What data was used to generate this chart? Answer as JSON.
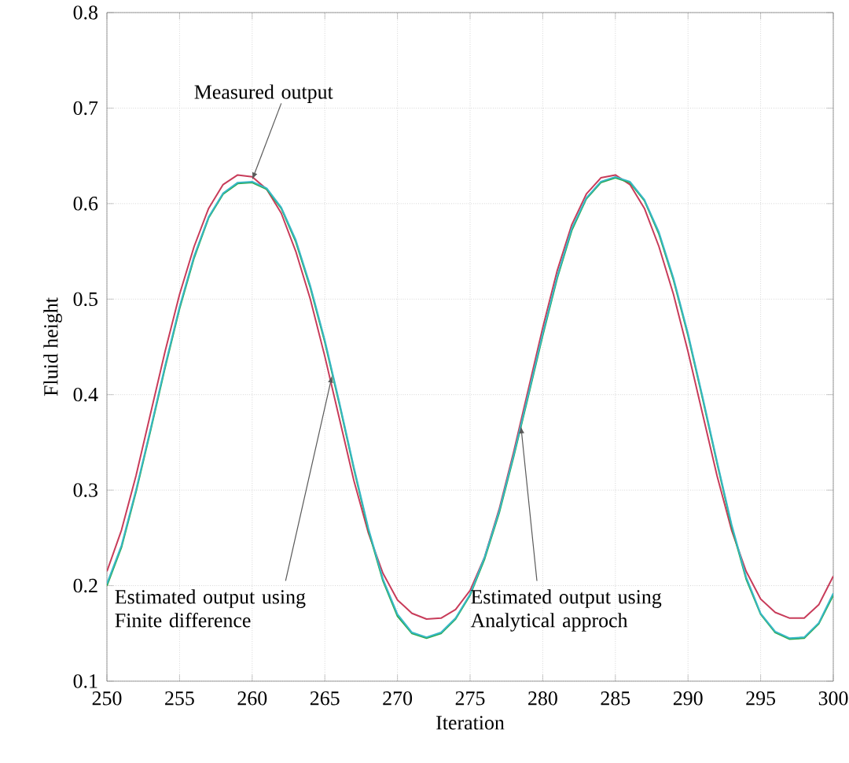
{
  "chart_data": {
    "type": "line",
    "xlabel": "Iteration",
    "ylabel": "Fluid height",
    "xlim": [
      250,
      300
    ],
    "ylim": [
      0.1,
      0.8
    ],
    "xticks": [
      250,
      255,
      260,
      265,
      270,
      275,
      280,
      285,
      290,
      295,
      300
    ],
    "yticks": [
      0.1,
      0.2,
      0.3,
      0.4,
      0.5,
      0.6,
      0.7,
      0.8
    ],
    "grid": true,
    "marker": "none",
    "line_style": "solid",
    "x": [
      250,
      251,
      252,
      253,
      254,
      255,
      256,
      257,
      258,
      259,
      260,
      261,
      262,
      263,
      264,
      265,
      266,
      267,
      268,
      269,
      270,
      271,
      272,
      273,
      274,
      275,
      276,
      277,
      278,
      279,
      280,
      281,
      282,
      283,
      284,
      285,
      286,
      287,
      288,
      289,
      290,
      291,
      292,
      293,
      294,
      295,
      296,
      297,
      298,
      299,
      300
    ],
    "series": [
      {
        "color": "#c83c5a",
        "values": [
          0.215,
          0.258,
          0.315,
          0.38,
          0.445,
          0.505,
          0.555,
          0.595,
          0.62,
          0.63,
          0.628,
          0.615,
          0.59,
          0.55,
          0.5,
          0.44,
          0.375,
          0.31,
          0.255,
          0.213,
          0.185,
          0.171,
          0.165,
          0.166,
          0.175,
          0.195,
          0.23,
          0.28,
          0.34,
          0.405,
          0.47,
          0.53,
          0.578,
          0.61,
          0.627,
          0.63,
          0.62,
          0.595,
          0.555,
          0.505,
          0.445,
          0.38,
          0.315,
          0.258,
          0.215,
          0.186,
          0.172,
          0.166,
          0.166,
          0.18,
          0.21
        ]
      },
      {
        "color": "#2aa84a",
        "values": [
          0.2,
          0.24,
          0.298,
          0.362,
          0.428,
          0.49,
          0.543,
          0.585,
          0.61,
          0.621,
          0.622,
          0.615,
          0.595,
          0.56,
          0.512,
          0.455,
          0.39,
          0.322,
          0.258,
          0.205,
          0.168,
          0.15,
          0.145,
          0.15,
          0.165,
          0.19,
          0.228,
          0.276,
          0.335,
          0.398,
          0.462,
          0.522,
          0.572,
          0.605,
          0.622,
          0.627,
          0.622,
          0.603,
          0.568,
          0.52,
          0.462,
          0.396,
          0.328,
          0.262,
          0.207,
          0.17,
          0.151,
          0.144,
          0.145,
          0.16,
          0.19
        ]
      },
      {
        "color": "#38b8c8",
        "values": [
          0.202,
          0.242,
          0.3,
          0.364,
          0.43,
          0.492,
          0.545,
          0.586,
          0.611,
          0.622,
          0.623,
          0.616,
          0.596,
          0.562,
          0.514,
          0.457,
          0.392,
          0.324,
          0.26,
          0.207,
          0.17,
          0.151,
          0.146,
          0.151,
          0.166,
          0.191,
          0.23,
          0.278,
          0.337,
          0.4,
          0.464,
          0.524,
          0.574,
          0.606,
          0.623,
          0.628,
          0.623,
          0.604,
          0.57,
          0.522,
          0.464,
          0.398,
          0.33,
          0.264,
          0.209,
          0.171,
          0.152,
          0.145,
          0.146,
          0.161,
          0.192
        ]
      }
    ],
    "annotations": [
      {
        "text": "Measured output",
        "x": 260,
        "y": 0.625
      },
      {
        "text": "Estimated output using Finite difference",
        "x": 265.5,
        "y": 0.42
      },
      {
        "text": "Estimated output using Analytical approch",
        "x": 278.5,
        "y": 0.367
      }
    ]
  }
}
